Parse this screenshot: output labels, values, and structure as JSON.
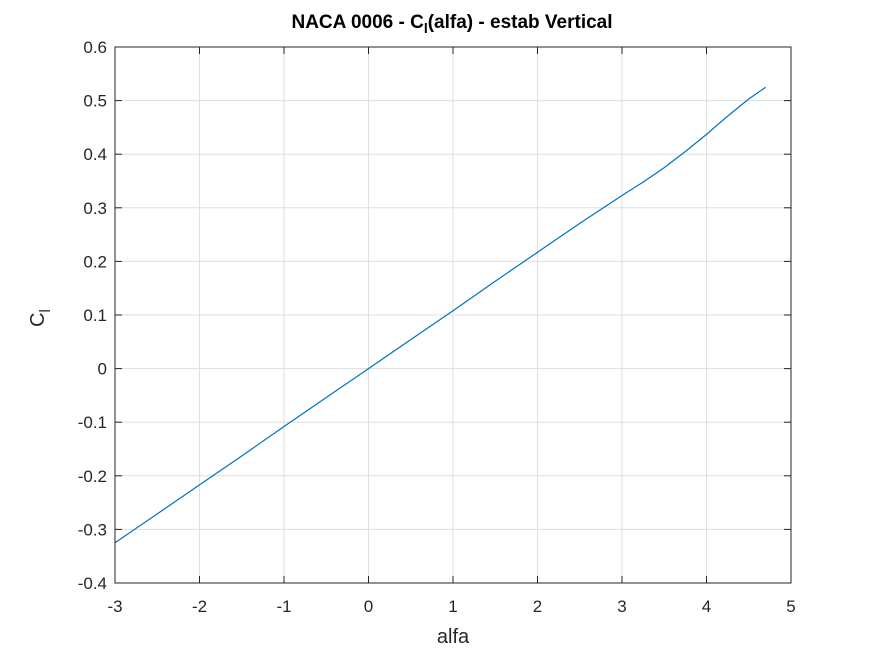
{
  "chart_data": {
    "type": "line",
    "title": {
      "prefix": "NACA 0006 - C",
      "subscript": "l",
      "suffix": "(alfa) - estab Vertical"
    },
    "xlabel": "alfa",
    "ylabel": {
      "main": "C",
      "subscript": "l"
    },
    "xlim": [
      -3,
      5
    ],
    "ylim": [
      -0.4,
      0.6
    ],
    "xticks": [
      -3,
      -2,
      -1,
      0,
      1,
      2,
      3,
      4,
      5
    ],
    "xtick_labels": [
      "-3",
      "-2",
      "-1",
      "0",
      "1",
      "2",
      "3",
      "4",
      "5"
    ],
    "yticks": [
      -0.4,
      -0.3,
      -0.2,
      -0.1,
      0,
      0.1,
      0.2,
      0.3,
      0.4,
      0.5,
      0.6
    ],
    "ytick_labels": [
      "-0.4",
      "-0.3",
      "-0.2",
      "-0.1",
      "0",
      "0.1",
      "0.2",
      "0.3",
      "0.4",
      "0.5",
      "0.6"
    ],
    "grid": true,
    "series": [
      {
        "color": "#0072BD",
        "x": [
          -3.0,
          -2.5,
          -2.0,
          -1.5,
          -1.0,
          -0.5,
          0.0,
          0.5,
          1.0,
          1.5,
          2.0,
          2.5,
          3.0,
          3.25,
          3.5,
          3.75,
          4.0,
          4.25,
          4.5,
          4.7
        ],
        "y": [
          -0.325,
          -0.271,
          -0.217,
          -0.163,
          -0.108,
          -0.054,
          0.0,
          0.054,
          0.108,
          0.163,
          0.217,
          0.271,
          0.323,
          0.348,
          0.375,
          0.405,
          0.437,
          0.471,
          0.503,
          0.525
        ]
      }
    ]
  }
}
